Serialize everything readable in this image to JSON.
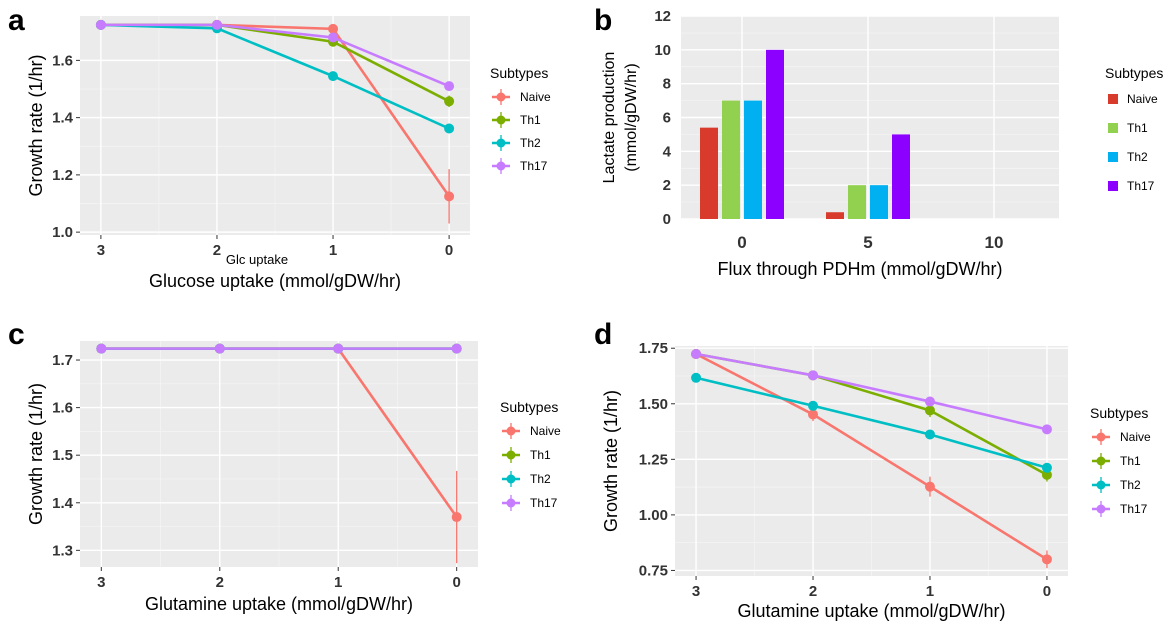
{
  "chart_data": [
    {
      "panel": "a",
      "type": "line",
      "x": [
        3,
        2,
        1,
        0
      ],
      "xlim": [
        3.18,
        -0.18
      ],
      "ylim": [
        0.99,
        1.755
      ],
      "yticks": [
        1.0,
        1.2,
        1.4,
        1.6
      ],
      "tick_labels_y": [
        "1.0",
        "1.2",
        "1.4",
        "1.6"
      ],
      "tick_labels_x": [
        "3",
        "2",
        "1",
        "0"
      ],
      "xlabel": "Glucose uptake (mmol/gDW/hr)",
      "xsublabel": "Glc  uptake",
      "ylabel": "Growth rate (1/hr)",
      "legend_title": "Subtypes",
      "legend": "right",
      "grid": true,
      "series": [
        {
          "name": "Naive",
          "color": "#F8766D",
          "values": [
            1.724,
            1.724,
            1.71,
            1.125
          ],
          "err": [
            0,
            0,
            0.015,
            0.095
          ]
        },
        {
          "name": "Th1",
          "color": "#7CAE00",
          "values": [
            1.724,
            1.724,
            1.665,
            1.457
          ],
          "err": [
            0,
            0,
            0.01,
            0.02
          ]
        },
        {
          "name": "Th2",
          "color": "#00BFC4",
          "values": [
            1.724,
            1.712,
            1.545,
            1.362
          ],
          "err": [
            0,
            0,
            0.012,
            0.015
          ]
        },
        {
          "name": "Th17",
          "color": "#C77CFF",
          "values": [
            1.724,
            1.724,
            1.68,
            1.51
          ],
          "err": [
            0,
            0,
            0.01,
            0.012
          ]
        }
      ]
    },
    {
      "panel": "b",
      "type": "bar",
      "categories": [
        "0",
        "5",
        "10"
      ],
      "ylim": [
        0,
        12
      ],
      "yticks": [
        0,
        2,
        4,
        6,
        8,
        10,
        12
      ],
      "tick_labels_y": [
        "0",
        "2",
        "4",
        "6",
        "8",
        "10",
        "12"
      ],
      "xlabel": "Flux through PDHm (mmol/gDW/hr)",
      "ylabel": "Lactate production",
      "ylabel2": "(mmol/gDW/hr)",
      "legend_title": "Subtypes",
      "legend": "right",
      "grid": true,
      "series": [
        {
          "name": "Naive",
          "color": "#D83A2C",
          "values": [
            5.4,
            0.4,
            0
          ]
        },
        {
          "name": "Th1",
          "color": "#92D050",
          "values": [
            7.0,
            2.0,
            0
          ]
        },
        {
          "name": "Th2",
          "color": "#00B0F0",
          "values": [
            7.0,
            2.0,
            0
          ]
        },
        {
          "name": "Th17",
          "color": "#8B00FF",
          "values": [
            10.0,
            5.0,
            0
          ]
        }
      ]
    },
    {
      "panel": "c",
      "type": "line",
      "x": [
        3,
        2,
        1,
        0
      ],
      "xlim": [
        3.18,
        -0.18
      ],
      "ylim": [
        1.265,
        1.74
      ],
      "yticks": [
        1.3,
        1.4,
        1.5,
        1.6,
        1.7
      ],
      "tick_labels_y": [
        "1.3",
        "1.4",
        "1.5",
        "1.6",
        "1.7"
      ],
      "tick_labels_x": [
        "3",
        "2",
        "1",
        "0"
      ],
      "xlabel": "Glutamine uptake (mmol/gDW/hr)",
      "ylabel": "Growth rate (1/hr)",
      "legend_title": "Subtypes",
      "legend": "right",
      "grid": true,
      "series": [
        {
          "name": "Naive",
          "color": "#F8766D",
          "values": [
            1.724,
            1.724,
            1.724,
            1.37
          ],
          "err": [
            0,
            0,
            0,
            0.097
          ]
        },
        {
          "name": "Th1",
          "color": "#7CAE00",
          "values": [
            1.724,
            1.724,
            1.724,
            1.724
          ],
          "err": [
            0,
            0,
            0,
            0
          ]
        },
        {
          "name": "Th2",
          "color": "#00BFC4",
          "values": [
            1.724,
            1.724,
            1.724,
            1.724
          ],
          "err": [
            0,
            0,
            0,
            0
          ]
        },
        {
          "name": "Th17",
          "color": "#C77CFF",
          "values": [
            1.724,
            1.724,
            1.724,
            1.724
          ],
          "err": [
            0,
            0,
            0,
            0
          ]
        }
      ]
    },
    {
      "panel": "d",
      "type": "line",
      "x": [
        3,
        2,
        1,
        0
      ],
      "xlim": [
        3.18,
        -0.18
      ],
      "ylim": [
        0.725,
        1.76
      ],
      "yticks": [
        0.75,
        1.0,
        1.25,
        1.5,
        1.75
      ],
      "tick_labels_y": [
        "0.75",
        "1.00",
        "1.25",
        "1.50",
        "1.75"
      ],
      "tick_labels_x": [
        "3",
        "2",
        "1",
        "0"
      ],
      "xlabel": "Glutamine uptake (mmol/gDW/hr)",
      "ylabel": "Growth rate (1/hr)",
      "legend_title": "Subtypes",
      "legend": "right",
      "grid": true,
      "series": [
        {
          "name": "Naive",
          "color": "#F8766D",
          "values": [
            1.724,
            1.452,
            1.127,
            0.8
          ],
          "err": [
            0,
            0.03,
            0.045,
            0.04
          ]
        },
        {
          "name": "Th1",
          "color": "#7CAE00",
          "values": [
            1.724,
            1.628,
            1.47,
            1.18
          ],
          "err": [
            0,
            0.01,
            0.03,
            0.03
          ]
        },
        {
          "name": "Th2",
          "color": "#00BFC4",
          "values": [
            1.617,
            1.491,
            1.362,
            1.212
          ],
          "err": [
            0,
            0.01,
            0.01,
            0.02
          ]
        },
        {
          "name": "Th17",
          "color": "#C77CFF",
          "values": [
            1.724,
            1.628,
            1.51,
            1.385
          ],
          "err": [
            0,
            0.01,
            0.01,
            0.01
          ]
        }
      ]
    }
  ]
}
